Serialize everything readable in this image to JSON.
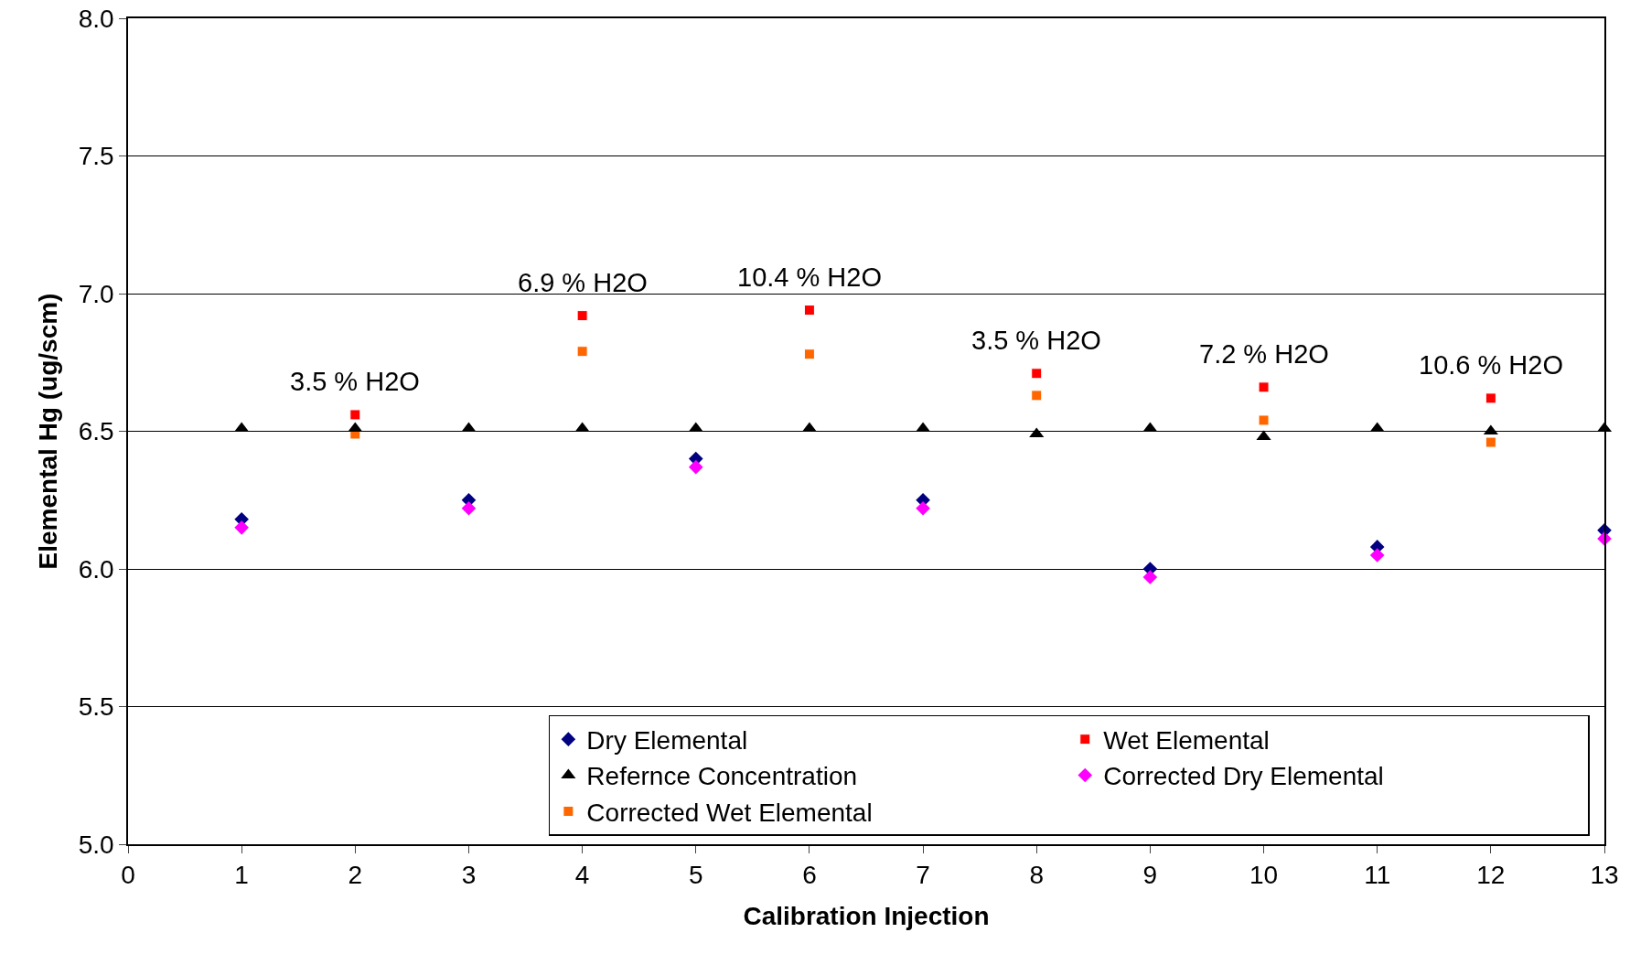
{
  "chart_data": {
    "type": "scatter",
    "xlabel": "Calibration Injection",
    "ylabel": "Elemental Hg (ug/scm)",
    "xlim": [
      0,
      13
    ],
    "xticks": [
      0,
      1,
      2,
      3,
      4,
      5,
      6,
      7,
      8,
      9,
      10,
      11,
      12,
      13
    ],
    "ylim": [
      5,
      8
    ],
    "yticks": [
      {
        "value": 5,
        "label": "5.0"
      },
      {
        "value": 5.5,
        "label": "5.5"
      },
      {
        "value": 6,
        "label": "6.0"
      },
      {
        "value": 6.5,
        "label": "6.5"
      },
      {
        "value": 7,
        "label": "7.0"
      },
      {
        "value": 7.5,
        "label": "7.5"
      },
      {
        "value": 8,
        "label": "8.0"
      }
    ],
    "grid": "y",
    "legend": "bottom right",
    "series": [
      {
        "name": "Dry Elemental",
        "color": "#000080",
        "marker": "diamond",
        "x": [
          1,
          3,
          5,
          7,
          9,
          11,
          13
        ],
        "values": [
          6.18,
          6.25,
          6.4,
          6.25,
          6.0,
          6.08,
          6.14
        ]
      },
      {
        "name": "Wet Elemental",
        "color": "#ff0000",
        "marker": "square",
        "x": [
          2,
          4,
          6,
          8,
          10,
          12
        ],
        "values": [
          6.56,
          6.92,
          6.94,
          6.71,
          6.66,
          6.62
        ]
      },
      {
        "name": "Refernce Concentration",
        "color": "#000000",
        "marker": "triangle",
        "x": [
          1,
          2,
          3,
          4,
          5,
          6,
          7,
          8,
          9,
          10,
          11,
          12,
          13
        ],
        "values": [
          6.51,
          6.51,
          6.51,
          6.51,
          6.51,
          6.51,
          6.51,
          6.49,
          6.51,
          6.48,
          6.51,
          6.5,
          6.51
        ]
      },
      {
        "name": "Corrected Dry Elemental",
        "color": "#ff00ff",
        "marker": "diamond",
        "x": [
          1,
          3,
          5,
          7,
          9,
          11,
          13
        ],
        "values": [
          6.15,
          6.22,
          6.37,
          6.22,
          5.97,
          6.05,
          6.11
        ]
      },
      {
        "name": "Corrected Wet Elemental",
        "color": "#ff6600",
        "marker": "square",
        "x": [
          2,
          4,
          6,
          8,
          10,
          12
        ],
        "values": [
          6.49,
          6.79,
          6.78,
          6.63,
          6.54,
          6.46
        ]
      }
    ],
    "annotations": [
      {
        "text": "3.5 % H2O",
        "x": 2,
        "y": 6.56
      },
      {
        "text": "6.9 % H2O",
        "x": 4,
        "y": 6.92
      },
      {
        "text": "10.4 % H2O",
        "x": 6,
        "y": 6.94
      },
      {
        "text": "3.5 % H2O",
        "x": 8,
        "y": 6.71
      },
      {
        "text": "7.2 % H2O",
        "x": 10,
        "y": 6.66
      },
      {
        "text": "10.6 % H2O",
        "x": 12,
        "y": 6.62
      }
    ]
  }
}
